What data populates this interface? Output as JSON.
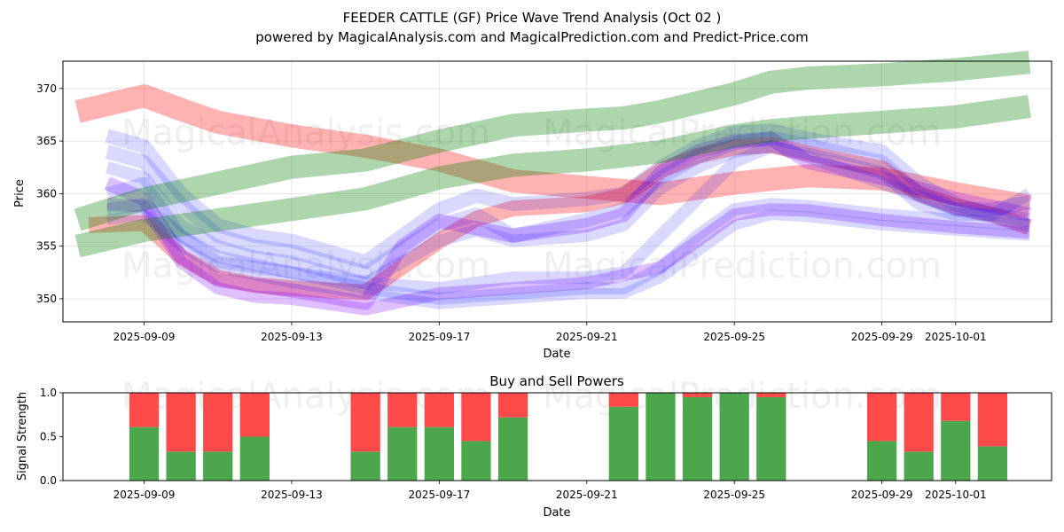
{
  "chart_data": [
    {
      "type": "line",
      "title_line1": "FEEDER CATTLE (GF) Price Wave Trend Analysis (Oct 02 )",
      "title_line2": "powered by MagicalAnalysis.com and MagicalPrediction.com and Predict-Price.com",
      "xlabel": "Date",
      "ylabel": "Price",
      "ylim": [
        347.8,
        372.6
      ],
      "y_ticks": [
        350,
        355,
        360,
        365,
        370
      ],
      "x_ticks": [
        "2025-09-09",
        "2025-09-13",
        "2025-09-17",
        "2025-09-21",
        "2025-09-25",
        "2025-09-29",
        "2025-10-01"
      ],
      "x_tick_days": [
        9,
        13,
        17,
        21,
        25,
        29,
        31
      ],
      "xlim_days": [
        6.8,
        33.6
      ],
      "colors": {
        "red": "#ff0000",
        "green": "#008000",
        "blue": "#0000ff",
        "purple": "#8000ff"
      },
      "watermarks": [
        "MagicalAnalysis.com",
        "MagicalPrediction.com"
      ],
      "series": [
        {
          "name": "red-wave-1",
          "color": "red",
          "opacity": 0.3,
          "width": 26,
          "x": [
            7.2,
            9,
            10,
            11,
            13,
            15,
            17,
            19,
            21,
            23,
            25,
            27,
            29,
            31,
            33
          ],
          "y": [
            367.8,
            369.3,
            368.0,
            366.8,
            365.5,
            364.5,
            363.2,
            361.2,
            360.6,
            360.0,
            361.0,
            361.7,
            361.4,
            360.0,
            358.8
          ]
        },
        {
          "name": "red-wave-2",
          "color": "red",
          "opacity": 0.3,
          "width": 18,
          "x": [
            7.5,
            9,
            10,
            11,
            12,
            13,
            15,
            17,
            18,
            19,
            21,
            22,
            23,
            24,
            25,
            26,
            27,
            29,
            30,
            31,
            32,
            33
          ],
          "y": [
            357.0,
            357.2,
            354.0,
            352.0,
            351.3,
            351.0,
            350.6,
            355.5,
            357.6,
            358.6,
            359.0,
            359.8,
            362.2,
            363.6,
            364.4,
            364.6,
            363.8,
            362.4,
            360.0,
            358.8,
            358.0,
            356.8
          ]
        },
        {
          "name": "purple-wave-1",
          "color": "purple",
          "opacity": 0.25,
          "width": 16,
          "x": [
            8,
            9,
            10,
            11,
            13,
            15,
            16,
            17,
            19,
            21,
            22,
            23,
            24,
            25,
            26,
            27,
            29,
            31,
            33
          ],
          "y": [
            361.0,
            359.5,
            354.0,
            351.8,
            350.8,
            349.6,
            355.0,
            357.4,
            356.0,
            357.0,
            358.0,
            362.0,
            364.0,
            365.0,
            365.2,
            363.0,
            361.5,
            359.5,
            358.0
          ]
        },
        {
          "name": "purple-wave-2",
          "color": "purple",
          "opacity": 0.25,
          "width": 14,
          "x": [
            8,
            9,
            10,
            11,
            12,
            13,
            15,
            17,
            19,
            21,
            23,
            25,
            26,
            27,
            29,
            31,
            33
          ],
          "y": [
            359.0,
            358.8,
            353.5,
            351.0,
            350.2,
            350.0,
            349.0,
            350.5,
            351.0,
            351.5,
            353.0,
            358.0,
            358.5,
            358.4,
            357.5,
            356.8,
            356.3
          ]
        },
        {
          "name": "blue-wave-1",
          "color": "blue",
          "opacity": 0.15,
          "width": 16,
          "x": [
            8,
            9,
            10,
            11,
            12,
            13,
            15,
            17,
            18,
            19,
            21,
            22,
            23,
            24,
            25,
            26,
            27,
            29,
            30,
            31,
            32,
            33
          ],
          "y": [
            365.5,
            364.5,
            360.0,
            357.0,
            356.0,
            355.5,
            353.5,
            358.5,
            359.8,
            359.0,
            359.5,
            360.0,
            362.5,
            364.5,
            365.8,
            366.0,
            365.2,
            364.0,
            361.0,
            359.0,
            358.0,
            357.5
          ]
        },
        {
          "name": "blue-wave-2",
          "color": "blue",
          "opacity": 0.15,
          "width": 16,
          "x": [
            8,
            9,
            10,
            11,
            12,
            13,
            15,
            17,
            18,
            19,
            21,
            22,
            23,
            24,
            25,
            26,
            27,
            29,
            30,
            31,
            32,
            33
          ],
          "y": [
            364.0,
            363.0,
            359.0,
            356.0,
            355.0,
            354.5,
            352.5,
            357.0,
            358.0,
            356.0,
            357.5,
            358.5,
            361.5,
            363.5,
            364.8,
            365.3,
            364.6,
            363.0,
            360.0,
            358.5,
            358.5,
            359.2
          ]
        },
        {
          "name": "blue-wave-3",
          "color": "blue",
          "opacity": 0.15,
          "width": 14,
          "x": [
            8,
            9,
            10,
            11,
            12,
            13,
            15,
            17,
            18,
            19,
            21,
            22,
            23,
            24,
            25,
            26,
            27,
            29,
            30,
            31,
            32,
            33
          ],
          "y": [
            362.5,
            361.5,
            357.0,
            355.0,
            354.0,
            353.5,
            351.5,
            355.5,
            356.5,
            355.5,
            356.0,
            357.0,
            360.5,
            362.5,
            364.0,
            364.5,
            363.8,
            362.0,
            359.0,
            358.0,
            358.0,
            360.0
          ]
        },
        {
          "name": "blue-wave-4",
          "color": "blue",
          "opacity": 0.15,
          "width": 14,
          "x": [
            8,
            9,
            10,
            11,
            13,
            15,
            17,
            18,
            19,
            21,
            22,
            23,
            24,
            25,
            26,
            27,
            29,
            31,
            33
          ],
          "y": [
            360.0,
            361.0,
            356.0,
            353.5,
            352.5,
            351.5,
            351.0,
            351.5,
            352.0,
            352.0,
            352.5,
            356.0,
            359.5,
            363.0,
            364.5,
            363.5,
            361.0,
            358.5,
            357.0
          ]
        },
        {
          "name": "blue-wave-5",
          "color": "blue",
          "opacity": 0.15,
          "width": 14,
          "x": [
            8,
            9,
            10,
            11,
            13,
            15,
            17,
            19,
            21,
            22,
            23,
            24,
            25,
            26,
            27,
            29,
            31,
            33
          ],
          "y": [
            358.5,
            359.0,
            356.0,
            354.0,
            352.5,
            351.0,
            350.0,
            350.5,
            351.0,
            351.0,
            353.0,
            356.0,
            358.5,
            359.0,
            358.8,
            358.0,
            357.5,
            357.0
          ]
        },
        {
          "name": "blue-wave-6",
          "color": "blue",
          "opacity": 0.15,
          "width": 12,
          "x": [
            8,
            9,
            10,
            11,
            13,
            15,
            17,
            19,
            21,
            22,
            23,
            25,
            26,
            27,
            29,
            31,
            33
          ],
          "y": [
            357.5,
            358.0,
            355.0,
            353.0,
            351.5,
            350.5,
            349.5,
            350.0,
            350.5,
            350.5,
            352.0,
            357.0,
            358.0,
            357.8,
            357.0,
            356.5,
            356.0
          ]
        },
        {
          "name": "green-wave-1",
          "color": "green",
          "opacity": 0.32,
          "width": 26,
          "x": [
            7.2,
            9,
            11,
            13,
            15,
            17,
            19,
            21,
            22,
            23,
            25,
            26,
            27,
            29,
            31,
            33
          ],
          "y": [
            357.5,
            359.5,
            361.0,
            362.5,
            363.2,
            365.0,
            366.5,
            367.0,
            367.2,
            367.8,
            369.5,
            370.6,
            371.0,
            371.3,
            371.8,
            372.5
          ]
        },
        {
          "name": "green-wave-2",
          "color": "green",
          "opacity": 0.32,
          "width": 26,
          "x": [
            7.2,
            9,
            11,
            13,
            15,
            17,
            19,
            21,
            23,
            25,
            26,
            27,
            29,
            31,
            33
          ],
          "y": [
            355.0,
            356.5,
            357.5,
            358.5,
            359.5,
            361.5,
            362.7,
            363.2,
            364.0,
            365.5,
            366.0,
            366.3,
            366.8,
            367.3,
            368.3
          ]
        }
      ]
    },
    {
      "type": "bar",
      "title": "Buy and Sell Powers",
      "xlabel": "Date",
      "ylabel": "Signal Strength",
      "ylim": [
        0,
        1.0
      ],
      "y_ticks": [
        "0.0",
        "0.5",
        "1.0"
      ],
      "x_ticks": [
        "2025-09-09",
        "2025-09-13",
        "2025-09-17",
        "2025-09-21",
        "2025-09-25",
        "2025-09-29",
        "2025-10-01"
      ],
      "x_tick_days": [
        9,
        13,
        17,
        21,
        25,
        29,
        31
      ],
      "xlim_days": [
        6.8,
        33.6
      ],
      "colors": {
        "buy": "#4ca64c",
        "sell": "#ff4a4a"
      },
      "watermarks": [
        "MagicalAnalysis.com",
        "MagicalPrediction.com"
      ],
      "series": [
        {
          "name": "Buy",
          "days": [
            9,
            10,
            11,
            12,
            15,
            16,
            17,
            18,
            19,
            22,
            23,
            24,
            25,
            26,
            29,
            30,
            31,
            32
          ],
          "values": [
            0.61,
            0.33,
            0.33,
            0.5,
            0.33,
            0.61,
            0.61,
            0.45,
            0.72,
            0.84,
            1.0,
            0.95,
            1.0,
            0.95,
            0.45,
            0.33,
            0.68,
            0.39
          ]
        },
        {
          "name": "Sell",
          "days": [
            9,
            10,
            11,
            12,
            15,
            16,
            17,
            18,
            19,
            22,
            23,
            24,
            25,
            26,
            29,
            30,
            31,
            32
          ],
          "values": [
            0.39,
            0.67,
            0.67,
            0.5,
            0.67,
            0.39,
            0.39,
            0.55,
            0.28,
            0.16,
            0.0,
            0.05,
            0.0,
            0.05,
            0.55,
            0.67,
            0.32,
            0.61
          ]
        }
      ]
    }
  ]
}
